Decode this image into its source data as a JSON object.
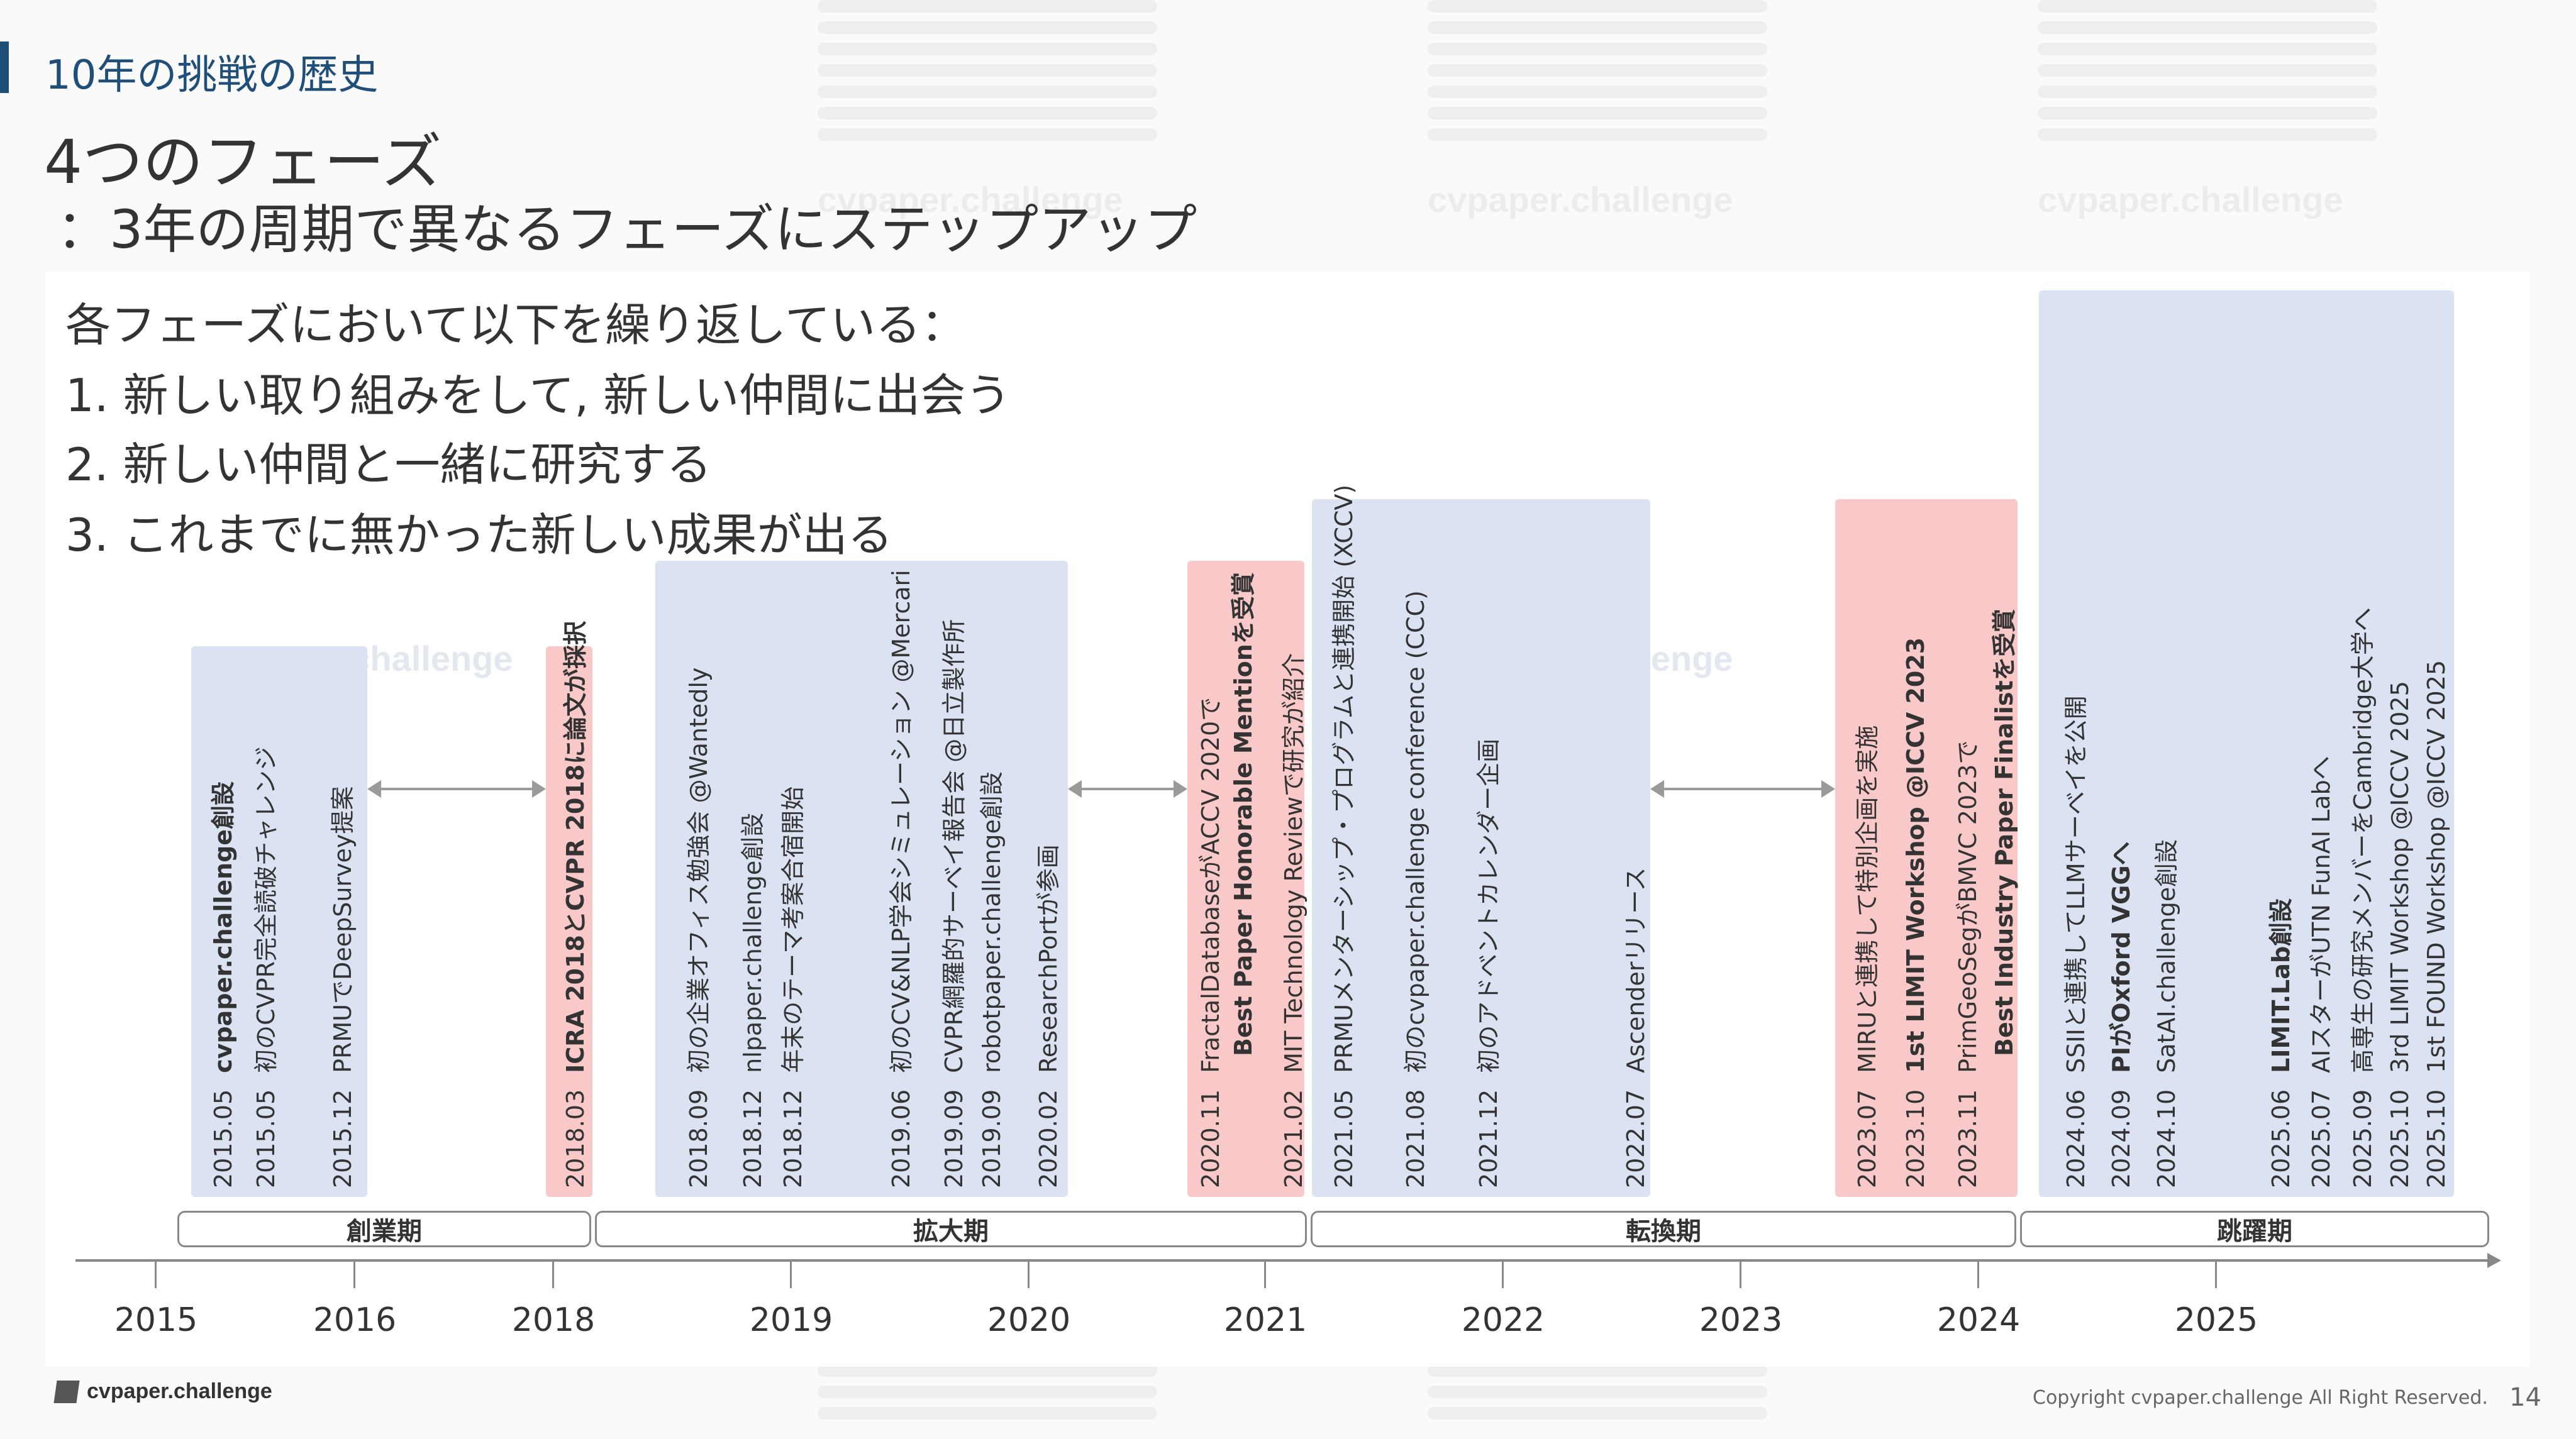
{
  "header": {
    "section_title": "10年の挑戦の歴史",
    "title": "4つのフェーズ",
    "subtitle": "：3年の周期で異なるフェーズにステップアップ"
  },
  "intro": {
    "line0": "各フェーズにおいて以下を繰り返している：",
    "line1": "1.  新しい取り組みをして, 新しい仲間に出会う",
    "line2": "2.  新しい仲間と一緒に研究する",
    "line3": "3.  これまでに無かった新しい成果が出る"
  },
  "watermark": "cvpaper.challenge",
  "events": [
    {
      "date": "2015.05",
      "text": "cvpaper.challenge創設",
      "bold": true
    },
    {
      "date": "2015.05",
      "text": "初のCVPR完全読破チャレンジ",
      "bold": false
    },
    {
      "date": "2015.12",
      "text": "PRMUでDeepSurvey提案",
      "bold": false
    },
    {
      "date": "2018.03",
      "text": "ICRA 2018とCVPR 2018に論文が採択",
      "bold": true
    },
    {
      "date": "2018.09",
      "text": "初の企業オフィス勉強会 @Wantedly",
      "bold": false
    },
    {
      "date": "2018.12",
      "text": "nlpaper.challenge創設",
      "bold": false
    },
    {
      "date": "2018.12",
      "text": "年末のテーマ考案合宿開始",
      "bold": false
    },
    {
      "date": "2019.06",
      "text": "初のCV&NLP学会シミュレーション @Mercari",
      "bold": false
    },
    {
      "date": "2019.09",
      "text": "CVPR網羅的サーベイ報告会 @日立製作所",
      "bold": false
    },
    {
      "date": "2019.09",
      "text": "robotpaper.challenge創設",
      "bold": false
    },
    {
      "date": "2020.02",
      "text": "ResearchPortが参画",
      "bold": false
    },
    {
      "date": "2020.11",
      "text": "FractalDatabaseがACCV 2020で",
      "bold": false
    },
    {
      "date": "",
      "text": "Best Paper Honorable Mentionを受賞",
      "bold": true
    },
    {
      "date": "2021.02",
      "text": "MIT Technology Reviewで研究が紹介",
      "bold": false
    },
    {
      "date": "2021.05",
      "text": "PRMUメンターシップ・プログラムと連携開始 (XCCV)",
      "bold": false
    },
    {
      "date": "2021.08",
      "text": "初のcvpaper.challenge conference (CCC)",
      "bold": false
    },
    {
      "date": "2021.12",
      "text": "初のアドベントカレンダー企画",
      "bold": false
    },
    {
      "date": "2022.07",
      "text": "Ascenderリリース",
      "bold": false
    },
    {
      "date": "2023.07",
      "text": "MIRUと連携して特別企画を実施",
      "bold": false
    },
    {
      "date": "2023.10",
      "text": "1st LIMIT Workshop @ICCV 2023",
      "bold": true
    },
    {
      "date": "2023.11",
      "text": "PrimGeoSegがBMVC 2023で",
      "bold": false
    },
    {
      "date": "",
      "text": "Best Industry Paper Finalistを受賞",
      "bold": true
    },
    {
      "date": "2024.06",
      "text": "SSIIと連携してLLMサーベイを公開",
      "bold": false
    },
    {
      "date": "2024.09",
      "text": "PIがOxford VGGへ",
      "bold": true
    },
    {
      "date": "2024.10",
      "text": "SatAI.challenge創設",
      "bold": false
    },
    {
      "date": "2025.06",
      "text": "LIMIT.Lab創設",
      "bold": true
    },
    {
      "date": "2025.07",
      "text": "AIスターがUTN FunAI Labへ",
      "bold": false
    },
    {
      "date": "2025.09",
      "text": "高専生の研究メンバーをCambridge大学へ",
      "bold": false
    },
    {
      "date": "2025.10",
      "text": "3rd LIMIT Workshop @ICCV 2025",
      "bold": false
    },
    {
      "date": "2025.10",
      "text": "1st FOUND Workshop @ICCV 2025",
      "bold": false
    }
  ],
  "eras": [
    "創業期",
    "拡大期",
    "転換期",
    "跳躍期"
  ],
  "years": [
    "2015",
    "2016",
    "2018",
    "2019",
    "2020",
    "2021",
    "2022",
    "2023",
    "2024",
    "2025"
  ],
  "footer": {
    "logo": "cvpaper.challenge",
    "copyright": "Copyright cvpaper.challenge All Right Reserved.",
    "page": "14"
  },
  "colors": {
    "accent": "#1f4e79",
    "phase_blue": "#dbe3f3",
    "phase_pink": "#f9c9c9"
  }
}
